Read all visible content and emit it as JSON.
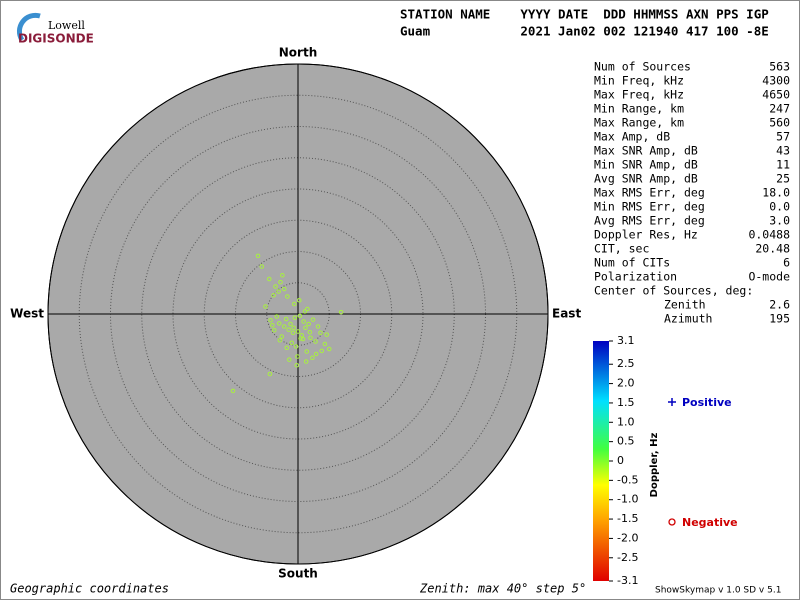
{
  "logo": {
    "line1": "Lowell",
    "line2": "DIGISONDE"
  },
  "header": {
    "labels": "STATION NAME    YYYY DATE  DDD HHMMSS AXN PPS IGP",
    "values": "Guam            2021 Jan02 002 121940 417 100 -8E"
  },
  "stats": {
    "rows": [
      [
        "Num of Sources",
        "563"
      ],
      [
        "Min Freq, kHz",
        "4300"
      ],
      [
        "Max Freq, kHz",
        "4650"
      ],
      [
        "Min Range, km",
        "247"
      ],
      [
        "Max Range, km",
        "560"
      ],
      [
        "Max Amp, dB",
        "57"
      ],
      [
        "Max SNR Amp, dB",
        "43"
      ],
      [
        "Min SNR Amp, dB",
        "11"
      ],
      [
        "Avg SNR Amp, dB",
        "25"
      ],
      [
        "Max RMS Err, deg",
        "18.0"
      ],
      [
        "Min RMS Err, deg",
        "0.0"
      ],
      [
        "Avg RMS Err, deg",
        "3.0"
      ],
      [
        "Doppler Res, Hz",
        "0.0488"
      ],
      [
        "CIT, sec",
        "20.48"
      ],
      [
        "Num of CITs",
        "6"
      ],
      [
        "Polarization",
        "O-mode"
      ]
    ],
    "center_title": "Center of Sources, deg:",
    "center_rows": [
      [
        "Zenith",
        "2.6"
      ],
      [
        "Azimuth",
        "195"
      ]
    ]
  },
  "footer": {
    "left": "Geographic coordinates",
    "middle": "Zenith: max 40°  step 5°",
    "right": "ShowSkymap v 1.0  SD v 5.1"
  },
  "chart_data": {
    "type": "skymap",
    "directions": {
      "north": "North",
      "south": "South",
      "east": "East",
      "west": "West"
    },
    "rlim": [
      0,
      40
    ],
    "rticks": [
      5,
      10,
      15,
      20,
      25,
      30,
      35,
      40
    ],
    "color": "#a8f040",
    "x": [
      -1.5,
      -0.8,
      0,
      0.6,
      -2.2,
      -3,
      1.2,
      2,
      2.8,
      3.6,
      -1,
      -0.3,
      0.9,
      1.7,
      -2.6,
      -3.8,
      4.3,
      5,
      -0.5,
      0.3,
      1.4,
      -1.8,
      2.4,
      3.2,
      -4.4,
      -0.1,
      0.8,
      -1.2,
      1.9,
      -2.9,
      0.4,
      -0.7,
      2.9,
      4.6,
      1.1,
      -3.4,
      -4.1,
      -3.6,
      -2.8,
      -3.1,
      -4.6,
      -2.2,
      -1.7,
      -3.9,
      -2.5,
      -0.6,
      0.2,
      1.5,
      -5.2,
      -1.9,
      -6.4,
      -10.4,
      -4.5,
      6.9,
      -5.8,
      -1.4,
      -0.2,
      1.3,
      3.8,
      2.3
    ],
    "y": [
      -2.5,
      -3,
      -2.8,
      -3.4,
      -2,
      -1.5,
      -2.2,
      -3.8,
      -4.4,
      -3,
      -4.6,
      -5.2,
      -1.2,
      -1.6,
      -3.6,
      -2.6,
      -4.8,
      -5.6,
      -0.6,
      -0.3,
      -6,
      -5.4,
      -0.9,
      -2,
      -1,
      -6.8,
      -4,
      -1.6,
      -2.9,
      -4.2,
      -3.9,
      -2.2,
      -6.4,
      -3.3,
      0.4,
      -0.4,
      -1.8,
      4.4,
      5.1,
      3.6,
      5.6,
      4,
      2.8,
      3,
      6.2,
      1.6,
      2.2,
      0.8,
      1.2,
      -0.8,
      9.3,
      -12.3,
      -9.6,
      0.3,
      7.6,
      -7.3,
      -8.2,
      -7.6,
      -5.9,
      -7
    ],
    "colorbar": {
      "label": "Doppler, Hz",
      "clim": [
        -3.1,
        3.1
      ],
      "ticks": [
        3.1,
        2.5,
        {
          "value": 2,
          "label": "2.0"
        },
        1.5,
        {
          "value": 1,
          "label": "1.0"
        },
        0.5,
        0,
        -0.5,
        {
          "value": -1,
          "label": "-1.0"
        },
        -1.5,
        {
          "value": -2,
          "label": "-2.0"
        },
        -2.5,
        -3.1
      ]
    },
    "legend": {
      "positive": "Positive",
      "negative": "Negative"
    }
  }
}
